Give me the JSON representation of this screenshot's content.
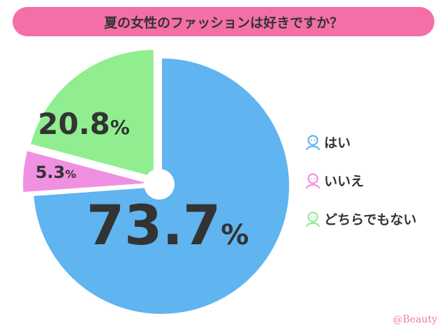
{
  "title": "夏の女性のファッションは好きですか？",
  "credit": "@Beauty",
  "colors": {
    "title_bg": "#f46fa8",
    "yes": "#60b4f0",
    "no": "#f090e0",
    "neither": "#90ee90",
    "text": "#333333"
  },
  "chart_data": {
    "type": "pie",
    "title": "夏の女性のファッションは好きですか？",
    "legend_position": "right",
    "slices": [
      {
        "label": "はい",
        "value": 73.7,
        "display": "73.7",
        "unit": "%",
        "color": "#60b4f0",
        "icon": "person-icon"
      },
      {
        "label": "いいえ",
        "value": 5.3,
        "display": "5.3",
        "unit": "%",
        "color": "#f090e0",
        "icon": "person-icon"
      },
      {
        "label": "どちらでもない",
        "value": 20.8,
        "display": "20.8",
        "unit": "%",
        "color": "#90ee90",
        "icon": "person-icon"
      }
    ]
  }
}
